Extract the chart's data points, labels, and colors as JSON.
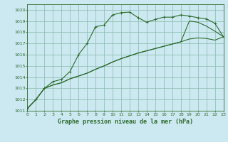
{
  "background_color": "#cce8f0",
  "grid_color": "#88bbaa",
  "line_color": "#2d6b2d",
  "title": "Graphe pression niveau de la mer (hPa)",
  "xlim": [
    0,
    23
  ],
  "ylim": [
    1011,
    1020.5
  ],
  "yticks": [
    1011,
    1012,
    1013,
    1014,
    1015,
    1016,
    1017,
    1018,
    1019,
    1020
  ],
  "xticks": [
    0,
    1,
    2,
    3,
    4,
    5,
    6,
    7,
    8,
    9,
    10,
    11,
    12,
    13,
    14,
    15,
    16,
    17,
    18,
    19,
    20,
    21,
    22,
    23
  ],
  "line1": [
    1011.2,
    1012.0,
    1013.0,
    1013.6,
    1013.8,
    1014.5,
    1016.0,
    1017.0,
    1018.5,
    1018.65,
    1019.55,
    1019.75,
    1019.8,
    1019.3,
    1018.9,
    1019.15,
    1019.35,
    1019.35,
    1019.55,
    1019.45,
    1019.3,
    1019.2,
    1018.8,
    1017.6
  ],
  "line2": [
    1011.2,
    1012.0,
    1013.0,
    1013.3,
    1013.5,
    1013.85,
    1014.1,
    1014.35,
    1014.7,
    1015.0,
    1015.35,
    1015.65,
    1015.9,
    1016.15,
    1016.35,
    1016.55,
    1016.75,
    1016.95,
    1017.15,
    1019.0,
    1018.9,
    1018.55,
    1018.1,
    1017.6
  ],
  "line3": [
    1011.2,
    1012.0,
    1013.0,
    1013.3,
    1013.5,
    1013.85,
    1014.1,
    1014.35,
    1014.7,
    1015.0,
    1015.35,
    1015.65,
    1015.9,
    1016.15,
    1016.35,
    1016.55,
    1016.75,
    1016.95,
    1017.15,
    1017.4,
    1017.5,
    1017.45,
    1017.3,
    1017.6
  ]
}
